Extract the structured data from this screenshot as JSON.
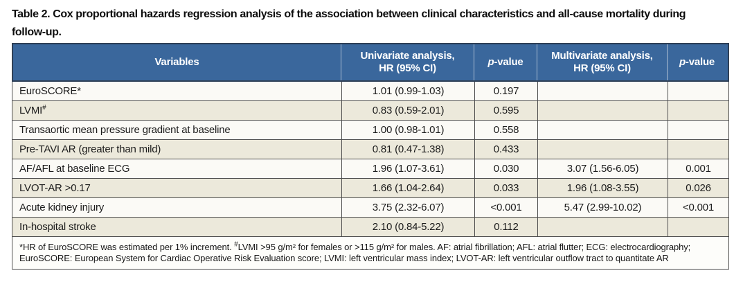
{
  "title": {
    "line1": "Table 2. Cox proportional hazards regression analysis of the association between clinical characteristics and all-cause mortality during",
    "line2": "follow-up."
  },
  "colors": {
    "header_bg": "#3a679c",
    "header_border": "#2e3f56",
    "header_divider": "#aebfd3",
    "grid_line": "#4d4d4d",
    "row_white": "#fbfaf6",
    "row_cream": "#ece9db"
  },
  "table": {
    "header": {
      "variables": "Variables",
      "univariate_line1": "Univariate analysis,",
      "univariate_line2": "HR (95% CI)",
      "pvalue_p": "p",
      "pvalue_rest": "-value",
      "multivariate_line1": "Multivariate analysis,",
      "multivariate_line2": "HR (95% CI)"
    },
    "rows": [
      {
        "variable": "EuroSCORE*",
        "variable_sup": "",
        "univariate": "1.01 (0.99-1.03)",
        "p1": "0.197",
        "multivariate": "",
        "p2": ""
      },
      {
        "variable": "LVMI",
        "variable_sup": "#",
        "univariate": "0.83 (0.59-2.01)",
        "p1": "0.595",
        "multivariate": "",
        "p2": ""
      },
      {
        "variable": "Transaortic mean pressure gradient at baseline",
        "variable_sup": "",
        "univariate": "1.00 (0.98-1.01)",
        "p1": "0.558",
        "multivariate": "",
        "p2": ""
      },
      {
        "variable": "Pre-TAVI AR (greater than mild)",
        "variable_sup": "",
        "univariate": "0.81 (0.47-1.38)",
        "p1": "0.433",
        "multivariate": "",
        "p2": ""
      },
      {
        "variable": "AF/AFL at baseline ECG",
        "variable_sup": "",
        "univariate": "1.96 (1.07-3.61)",
        "p1": "0.030",
        "multivariate": "3.07 (1.56-6.05)",
        "p2": "0.001"
      },
      {
        "variable": "LVOT-AR >0.17",
        "variable_sup": "",
        "univariate": "1.66 (1.04-2.64)",
        "p1": "0.033",
        "multivariate": "1.96 (1.08-3.55)",
        "p2": "0.026"
      },
      {
        "variable": "Acute kidney injury",
        "variable_sup": "",
        "univariate": "3.75 (2.32-6.07)",
        "p1": "<0.001",
        "multivariate": "5.47 (2.99-10.02)",
        "p2": "<0.001"
      },
      {
        "variable": "In-hospital stroke",
        "variable_sup": "",
        "univariate": "2.10 (0.84-5.22)",
        "p1": "0.112",
        "multivariate": "",
        "p2": ""
      }
    ],
    "footnote": {
      "seg1": "*HR of EuroSCORE was estimated per 1% increment. ",
      "sup1": "#",
      "seg2": "LVMI >95 g/m² for females or >115 g/m² for males. AF: atrial fibrillation; AFL: atrial flutter; ECG: electrocardiography; EuroSCORE: European System for Cardiac Operative Risk Evaluation score; LVMI: left ventricular mass index; LVOT-AR: left ventricular outflow tract to quantitate AR"
    }
  }
}
